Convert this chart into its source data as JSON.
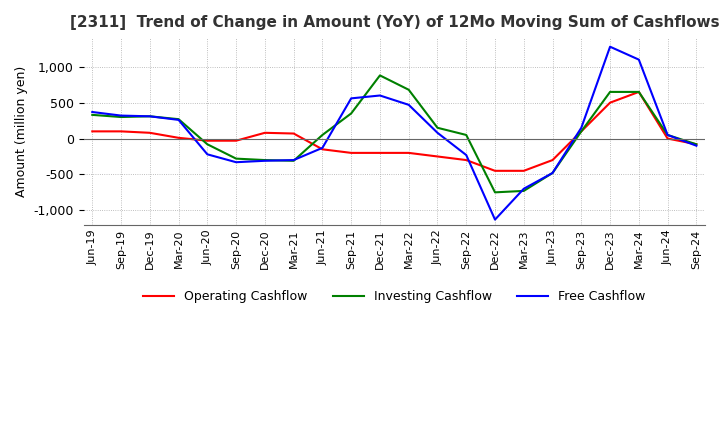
{
  "title": "[2311]  Trend of Change in Amount (YoY) of 12Mo Moving Sum of Cashflows",
  "ylabel": "Amount (million yen)",
  "ylim": [
    -1200,
    1400
  ],
  "yticks": [
    -1000,
    -500,
    0,
    500,
    1000
  ],
  "background_color": "#ffffff",
  "grid_color": "#aaaaaa",
  "x_labels": [
    "Jun-19",
    "Sep-19",
    "Dec-19",
    "Mar-20",
    "Jun-20",
    "Sep-20",
    "Dec-20",
    "Mar-21",
    "Jun-21",
    "Sep-21",
    "Dec-21",
    "Mar-22",
    "Jun-22",
    "Sep-22",
    "Dec-22",
    "Mar-23",
    "Jun-23",
    "Sep-23",
    "Dec-23",
    "Mar-24",
    "Jun-24",
    "Sep-24"
  ],
  "operating": [
    100,
    100,
    80,
    10,
    -30,
    -30,
    80,
    70,
    -150,
    -200,
    -200,
    -200,
    -250,
    -300,
    -450,
    -450,
    -300,
    100,
    500,
    650,
    0,
    -80
  ],
  "investing": [
    330,
    300,
    310,
    270,
    -80,
    -280,
    -300,
    -310,
    50,
    350,
    880,
    680,
    150,
    50,
    -750,
    -730,
    -480,
    100,
    650,
    650,
    50,
    -80
  ],
  "free": [
    370,
    320,
    310,
    260,
    -220,
    -330,
    -310,
    -300,
    -130,
    560,
    600,
    470,
    80,
    -230,
    -1130,
    -700,
    -480,
    150,
    1280,
    1100,
    50,
    -100
  ],
  "operating_color": "#ff0000",
  "investing_color": "#008000",
  "free_color": "#0000ff",
  "legend_labels": [
    "Operating Cashflow",
    "Investing Cashflow",
    "Free Cashflow"
  ]
}
